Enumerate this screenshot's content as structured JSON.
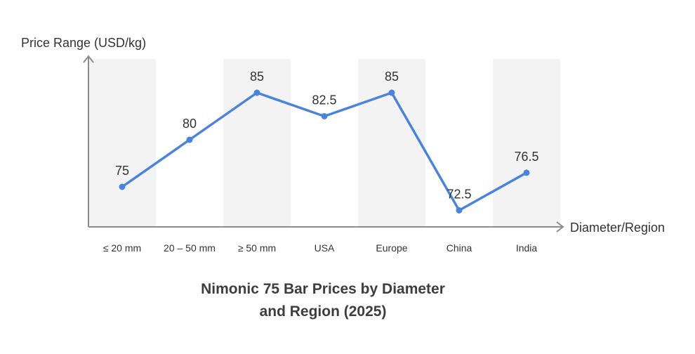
{
  "chart_data": {
    "type": "line",
    "title_line1": "Nimonic 75 Bar Prices by Diameter",
    "title_line2": "and Region (2025)",
    "xlabel": "Diameter/Region",
    "ylabel": "Price Range (USD/kg)",
    "categories": [
      "≤ 20 mm",
      "20 – 50 mm",
      "≥ 50 mm",
      "USA",
      "Europe",
      "China",
      "India"
    ],
    "series": [
      {
        "values": [
          75,
          80,
          85,
          82.5,
          85,
          72.5,
          76.5
        ]
      }
    ],
    "data_labels": [
      "75",
      "80",
      "85",
      "82.5",
      "85",
      "72.5",
      "76.5"
    ],
    "ylim": [
      70,
      90
    ],
    "grid": false,
    "legend": "none",
    "colors": {
      "line": "#4a83df",
      "band": "#f3f3f3",
      "axis": "#8c8c8c",
      "text": "#333333"
    }
  }
}
